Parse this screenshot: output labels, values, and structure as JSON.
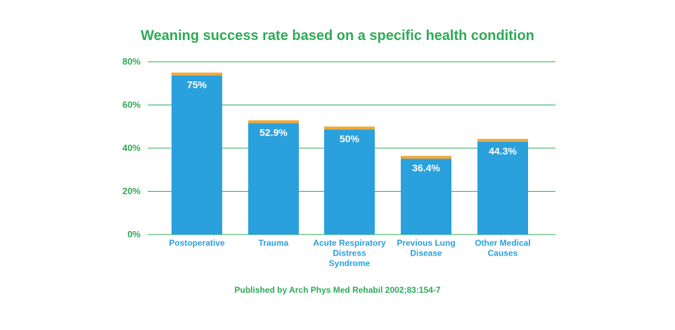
{
  "colors": {
    "title": "#2eaa56",
    "grid": "#2eaa56",
    "bar": "#2aa0dc",
    "bar_cap": "#f0a93a",
    "category_label": "#2aa0dc",
    "data_label": "#ffffff"
  },
  "chart_data": {
    "type": "bar",
    "title": "Weaning success rate based on a specific health condition",
    "categories": [
      [
        "Postoperative"
      ],
      [
        "Trauma"
      ],
      [
        "Acute Respiratory",
        "Distress",
        "Syndrome"
      ],
      [
        "Previous Lung",
        "Disease"
      ],
      [
        "Other Medical",
        "Causes"
      ]
    ],
    "values": [
      75,
      52.9,
      50,
      36.4,
      44.3
    ],
    "data_labels": [
      "75%",
      "52.9%",
      "50%",
      "36.4%",
      "44.3%"
    ],
    "ylim": [
      0,
      80
    ],
    "yticks": [
      0,
      20,
      40,
      60,
      80
    ],
    "ytick_labels": [
      "0%",
      "20%",
      "40%",
      "60%",
      "80%"
    ],
    "xlabel": "",
    "ylabel": "",
    "grid": true,
    "legend": "none"
  },
  "source": "Published by Arch Phys Med Rehabil 2002;83:154-7"
}
